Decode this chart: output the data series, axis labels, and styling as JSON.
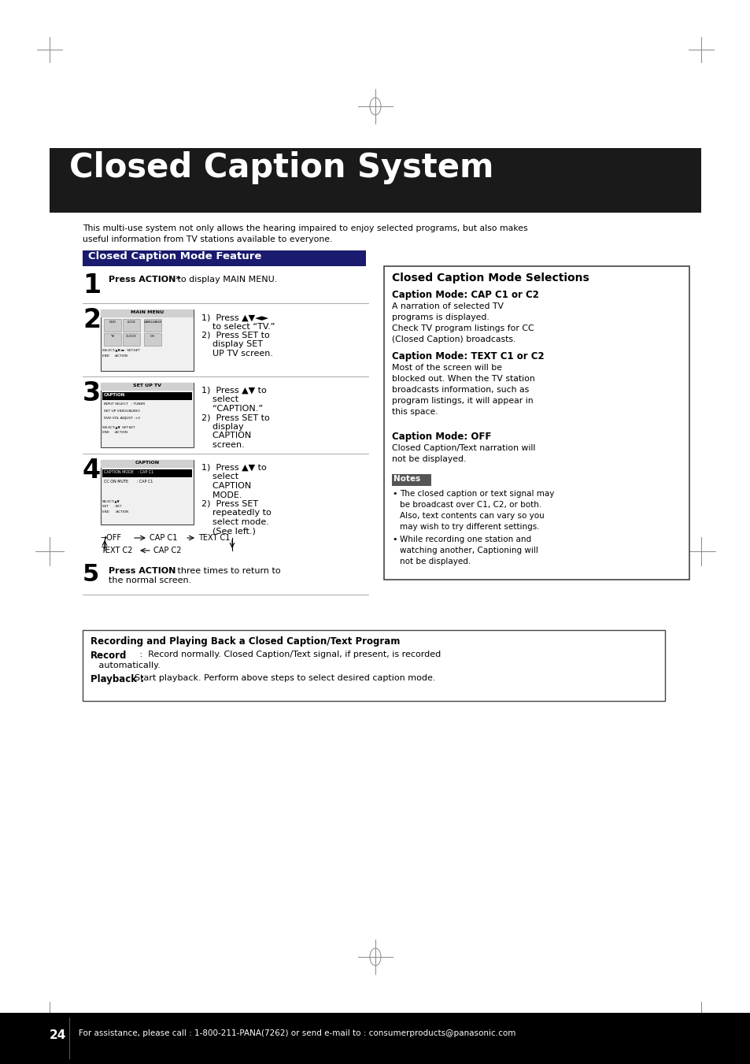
{
  "bg_color": "#ffffff",
  "title_bar_color": "#1a1a1a",
  "title_text": "Closed Caption System",
  "title_text_color": "#ffffff",
  "title_fontsize": 30,
  "header_bar_color": "#1a1a6e",
  "header_text": "Closed Caption Mode Feature",
  "header_text_color": "#ffffff",
  "header_fontsize": 9.5,
  "intro_text": "This multi-use system not only allows the hearing impaired to enjoy selected programs, but also makes\nuseful information from TV stations available to everyone.",
  "step1_num": "1",
  "step1_bold": "Press ACTION*",
  "step1_rest": " to display MAIN MENU.",
  "step2_num": "2",
  "step2_instr_1": "1)  Press ▲▼◄►",
  "step2_instr_2": "    to select “TV.”",
  "step2_instr_3": "2)  Press SET to",
  "step2_instr_4": "    display SET",
  "step2_instr_5": "    UP TV screen.",
  "step3_num": "3",
  "step3_instr_1": "1)  Press ▲▼ to",
  "step3_instr_2": "    select",
  "step3_instr_3": "    “CAPTION.”",
  "step3_instr_4": "2)  Press SET to",
  "step3_instr_5": "    display",
  "step3_instr_6": "    CAPTION",
  "step3_instr_7": "    screen.",
  "step4_num": "4",
  "step4_instr_1": "1)  Press ▲▼ to",
  "step4_instr_2": "    select",
  "step4_instr_3": "    CAPTION",
  "step4_instr_4": "    MODE.",
  "step4_instr_5": "2)  Press SET",
  "step4_instr_6": "    repeatedly to",
  "step4_instr_7": "    select mode.",
  "step4_instr_8": "    (See left.)",
  "step5_num": "5",
  "step5_bold": "Press ACTION",
  "step5_rest": " three times to return to\nthe normal screen.",
  "right_box_title": "Closed Caption Mode Selections",
  "cap_mode_c1c2_title": "Caption Mode: CAP C1 or C2",
  "cap_mode_c1c2_text": "A narration of selected TV\nprograms is displayed.\nCheck TV program listings for CC\n(Closed Caption) broadcasts.",
  "cap_mode_text_title": "Caption Mode: TEXT C1 or C2",
  "cap_mode_text_body": "Most of the screen will be\nblocked out. When the TV station\nbroadcasts information, such as\nprogram listings, it will appear in\nthis space.",
  "cap_mode_off_title": "Caption Mode: OFF",
  "cap_mode_off_text": "Closed Caption/Text narration will\nnot be displayed.",
  "notes_title": "Notes",
  "note1": "The closed caption or text signal may\nbe broadcast over C1, C2, or both.\nAlso, text contents can vary so you\nmay wish to try different settings.",
  "note2": "While recording one station and\nwatching another, Captioning will\nnot be displayed.",
  "bottom_box_title": "Recording and Playing Back a Closed Caption/Text Program",
  "record_label": "Record",
  "record_colon": "   :",
  "record_text": "  Record normally. Closed Caption/Text signal, if present, is recorded\n   automatically.",
  "playback_label": "Playback :",
  "playback_text": "  Start playback. Perform above steps to select desired caption mode.",
  "page_num": "24",
  "footer_text": "For assistance, please call : 1-800-211-PANA(7262) or send e-mail to : consumerproducts@panasonic.com",
  "footer_bar_color": "#000000",
  "footer_text_color": "#ffffff",
  "footer_fontsize": 7.5,
  "mark_color": "#888888"
}
